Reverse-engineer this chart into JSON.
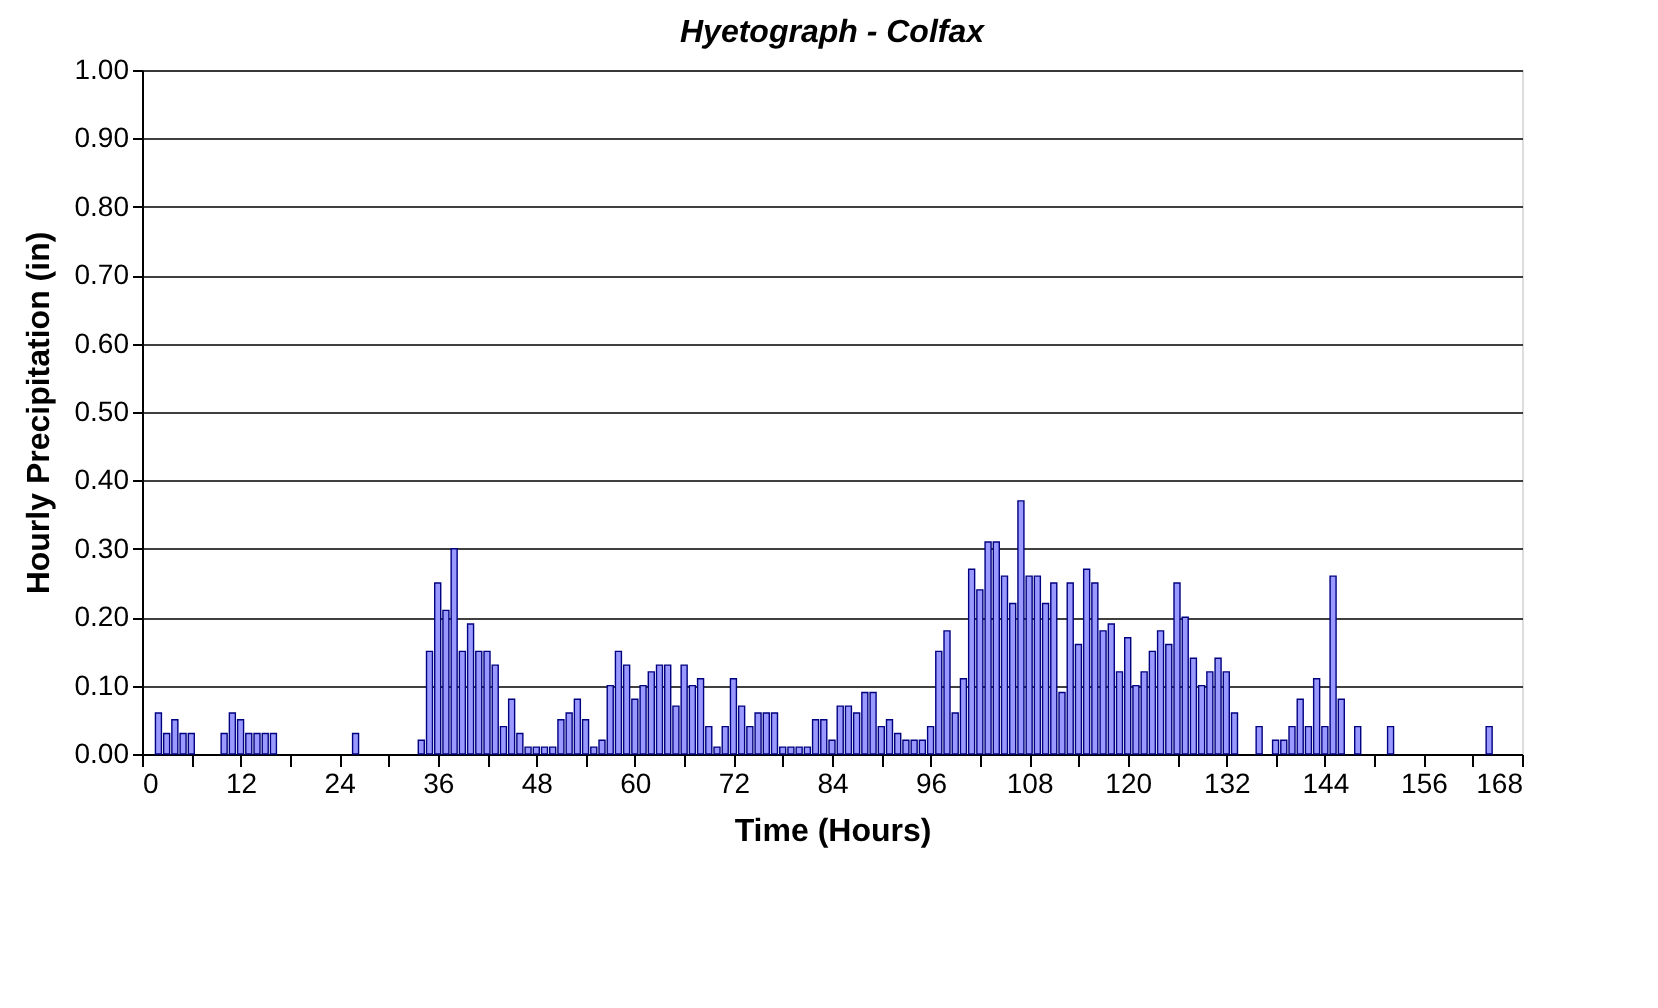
{
  "chart_data": {
    "type": "bar",
    "title": "Hyetograph - Colfax",
    "xlabel": "Time (Hours)",
    "ylabel": "Hourly Precipitation (in)",
    "x": [
      2,
      3,
      4,
      5,
      6,
      10,
      11,
      12,
      13,
      14,
      15,
      16,
      26,
      34,
      35,
      36,
      37,
      38,
      39,
      40,
      41,
      42,
      43,
      44,
      45,
      46,
      47,
      48,
      49,
      50,
      51,
      52,
      53,
      54,
      55,
      56,
      57,
      58,
      59,
      60,
      61,
      62,
      63,
      64,
      65,
      66,
      67,
      68,
      69,
      70,
      71,
      72,
      73,
      74,
      75,
      76,
      77,
      78,
      79,
      80,
      81,
      82,
      83,
      84,
      85,
      86,
      87,
      88,
      89,
      90,
      91,
      92,
      93,
      94,
      95,
      96,
      97,
      98,
      99,
      100,
      101,
      102,
      103,
      104,
      105,
      106,
      107,
      108,
      109,
      110,
      111,
      112,
      113,
      114,
      115,
      116,
      117,
      118,
      119,
      120,
      121,
      122,
      123,
      124,
      125,
      126,
      127,
      128,
      129,
      130,
      131,
      132,
      133,
      136,
      138,
      139,
      140,
      141,
      142,
      143,
      144,
      145,
      146,
      148,
      152,
      164
    ],
    "values": [
      0.06,
      0.03,
      0.05,
      0.03,
      0.03,
      0.03,
      0.06,
      0.05,
      0.03,
      0.03,
      0.03,
      0.03,
      0.03,
      0.02,
      0.15,
      0.25,
      0.21,
      0.3,
      0.15,
      0.19,
      0.15,
      0.15,
      0.13,
      0.04,
      0.08,
      0.03,
      0.01,
      0.01,
      0.01,
      0.01,
      0.05,
      0.06,
      0.08,
      0.05,
      0.01,
      0.02,
      0.1,
      0.15,
      0.13,
      0.08,
      0.1,
      0.12,
      0.13,
      0.13,
      0.07,
      0.13,
      0.1,
      0.11,
      0.04,
      0.01,
      0.04,
      0.11,
      0.07,
      0.04,
      0.06,
      0.06,
      0.06,
      0.01,
      0.01,
      0.01,
      0.01,
      0.05,
      0.05,
      0.02,
      0.07,
      0.07,
      0.06,
      0.09,
      0.09,
      0.04,
      0.05,
      0.03,
      0.02,
      0.02,
      0.02,
      0.04,
      0.15,
      0.18,
      0.06,
      0.11,
      0.27,
      0.24,
      0.31,
      0.31,
      0.26,
      0.22,
      0.37,
      0.26,
      0.26,
      0.22,
      0.25,
      0.09,
      0.25,
      0.16,
      0.27,
      0.25,
      0.18,
      0.19,
      0.12,
      0.17,
      0.1,
      0.12,
      0.15,
      0.18,
      0.16,
      0.25,
      0.2,
      0.14,
      0.1,
      0.12,
      0.14,
      0.12,
      0.06,
      0.04,
      0.02,
      0.02,
      0.04,
      0.08,
      0.04,
      0.11,
      0.04,
      0.26,
      0.08,
      0.04,
      0.04,
      0.04
    ],
    "color": "#9999ff",
    "xlim": [
      0,
      168
    ],
    "xticks": [
      0,
      {
        "value": 6,
        "label": null
      },
      12,
      {
        "value": 18,
        "label": null
      },
      24,
      {
        "value": 30,
        "label": null
      },
      36,
      {
        "value": 42,
        "label": null
      },
      48,
      {
        "value": 54,
        "label": null
      },
      60,
      {
        "value": 66,
        "label": null
      },
      72,
      {
        "value": 78,
        "label": null
      },
      84,
      {
        "value": 90,
        "label": null
      },
      96,
      {
        "value": 102,
        "label": null
      },
      108,
      {
        "value": 114,
        "label": null
      },
      120,
      {
        "value": 126,
        "label": null
      },
      132,
      {
        "value": 138,
        "label": null
      },
      144,
      {
        "value": 150,
        "label": null
      },
      156,
      {
        "value": 162,
        "label": null
      },
      168
    ],
    "ylim": [
      0,
      1
    ],
    "yticks": [
      {
        "value": 0,
        "label": "0.00"
      },
      {
        "value": 0.1,
        "label": "0.10"
      },
      {
        "value": 0.2,
        "label": "0.20"
      },
      {
        "value": 0.3,
        "label": "0.30"
      },
      {
        "value": 0.4,
        "label": "0.40"
      },
      {
        "value": 0.5,
        "label": "0.50"
      },
      {
        "value": 0.6,
        "label": "0.60"
      },
      {
        "value": 0.7,
        "label": "0.70"
      },
      {
        "value": 0.8,
        "label": "0.80"
      },
      {
        "value": 0.9,
        "label": "0.90"
      },
      {
        "value": 1,
        "label": "1.00"
      }
    ],
    "grid": "y"
  }
}
